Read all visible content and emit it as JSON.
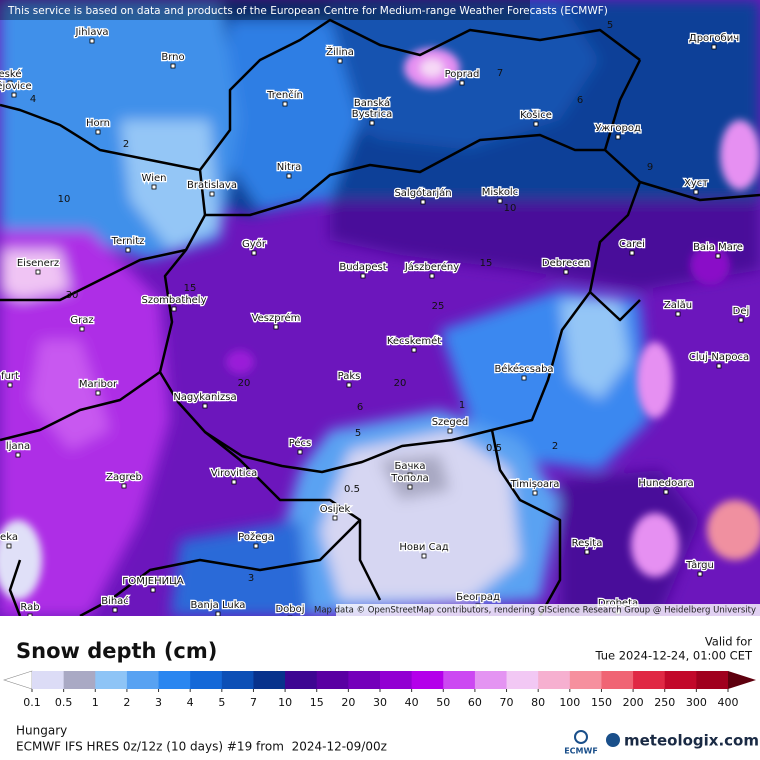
{
  "attribution": "This service is based on data and products of the European Centre for Medium-range Weather Forecasts (ECMWF)",
  "map_credit": "Map data © OpenStreetMap contributors, rendering GIScience Research Group @ Heidelberg University",
  "places": [
    "Jihlava",
    "Brno",
    "eské",
    "ějovice",
    "Horn",
    "Wien",
    "Bratislava",
    "Trenčín",
    "Žilina",
    "Poprad",
    "Banská",
    "Bystrica",
    "Košice",
    "Ужгород",
    "Дрогобич",
    "Хуст",
    "Nitra",
    "Salgótarján",
    "Miskolc",
    "Ternitz",
    "Győr",
    "Eisenerz",
    "Budapest",
    "Jászberény",
    "Debrecen",
    "Carei",
    "Baia Mare",
    "Szombathely",
    "Graz",
    "Veszprém",
    "Zalău",
    "Dej",
    "Kecskemét",
    "Cluj-Napoca",
    "furt",
    "Maribor",
    "Paks",
    "Békéscsaba",
    "Nagykanizsa",
    "Szeged",
    "ljana",
    "Pécs",
    "Zagreb",
    "Virovitica",
    "Бачка",
    "Топола",
    "Timișoara",
    "Hunedoara",
    "Osijek",
    "Požega",
    "Нови Сад",
    "Reșița",
    "eka",
    "Târgu",
    "ГОМЈЕНИЦА",
    "Bihać",
    "Banja Luka",
    "Doboj",
    "Београд",
    "Drobeta",
    "Rab"
  ],
  "contour_labels": [
    "4",
    "2",
    "10",
    "30",
    "20",
    "15",
    "15",
    "25",
    "20",
    "1",
    "0.5",
    "2",
    "0.5",
    "5",
    "3",
    "10",
    "6",
    "7",
    "5",
    "9",
    "6"
  ],
  "legend": {
    "title": "Snow depth (cm)",
    "valid_label": "Valid for",
    "valid_time": "Tue 2024-12-24, 01:00 CET",
    "levels": [
      0.1,
      0.5,
      1,
      2,
      3,
      4,
      5,
      7,
      10,
      15,
      20,
      30,
      40,
      50,
      60,
      70,
      80,
      100,
      150,
      200,
      250,
      300,
      400
    ],
    "colors": [
      "#dcdcf6",
      "#a9a9c4",
      "#8ec4f6",
      "#58a2f2",
      "#2a86f0",
      "#1468d8",
      "#0c4fb6",
      "#08328c",
      "#3e0692",
      "#5a00a2",
      "#7400ba",
      "#9200d2",
      "#b400ea",
      "#cc48f2",
      "#e494f2",
      "#f2c8f4",
      "#f6b0d0",
      "#f6909e",
      "#f06474",
      "#e02844",
      "#c2082a",
      "#a0001e",
      "#820012"
    ],
    "under_color": "#ffffff",
    "over_color": "#5e000e"
  },
  "footer": {
    "region": "Hungary",
    "model": "ECMWF IFS HRES 0z/12z (10 days) #19 from  2024-12-09/00z",
    "ecmwf_logo": "ECMWF",
    "brand": "meteologix.com"
  }
}
